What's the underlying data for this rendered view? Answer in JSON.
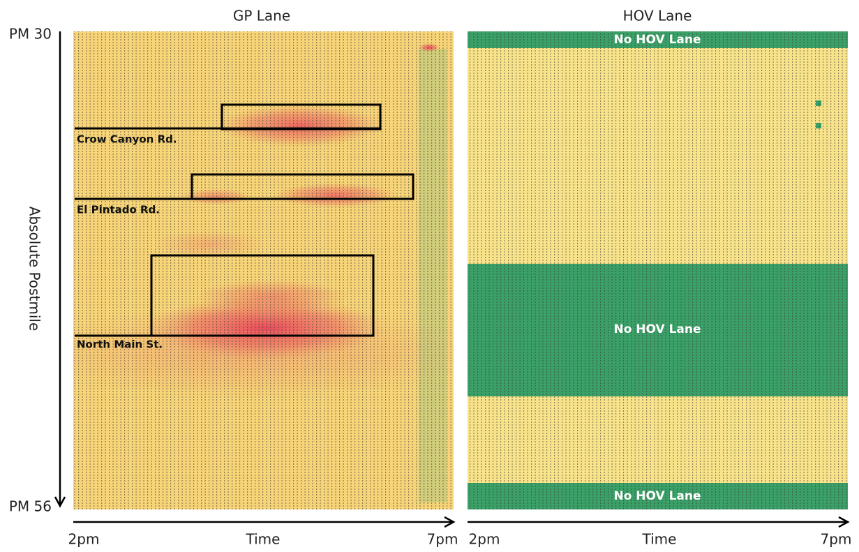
{
  "left_panel": {
    "title": "GP Lane",
    "landmarks": [
      "Crow Canyon Rd.",
      "El Pintado Rd.",
      "North Main St."
    ]
  },
  "right_panel": {
    "title": "HOV Lane",
    "labels": [
      "No HOV Lane",
      "No HOV Lane",
      "No HOV Lane"
    ]
  },
  "y_axis": {
    "label": "Absolute Postmile",
    "top": "PM 30",
    "bottom": "PM 56"
  },
  "left_x_axis": {
    "label": "Time",
    "start": "2pm",
    "end": "7pm"
  },
  "right_x_axis": {
    "label": "Time",
    "start": "2pm",
    "end": "7pm"
  }
}
